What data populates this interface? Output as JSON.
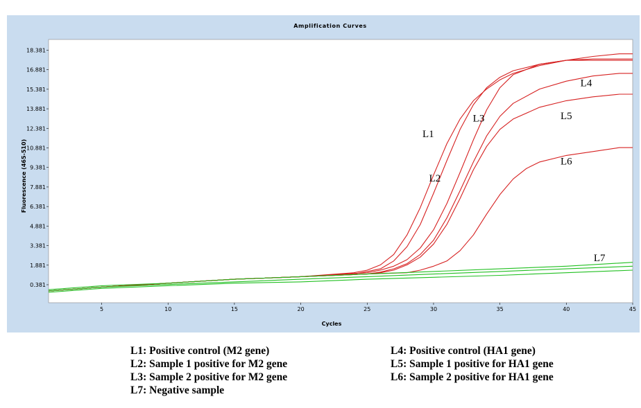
{
  "chart_data": {
    "type": "line",
    "title": "Amplification Curves",
    "xlabel": "Cycles",
    "ylabel": "Fluorescence (465-510)",
    "xlim": [
      1,
      45
    ],
    "ylim": [
      -1.0,
      19.2
    ],
    "x_ticks": [
      "5",
      "10",
      "15",
      "20",
      "25",
      "30",
      "35",
      "40",
      "45"
    ],
    "y_ticks": [
      "0.381",
      "1.881",
      "3.381",
      "4.881",
      "6.381",
      "7.881",
      "9.381",
      "10.881",
      "12.381",
      "13.881",
      "15.381",
      "16.881",
      "18.381"
    ],
    "grid": false,
    "series_colors": {
      "positive": "#d62020",
      "negative": "#1fbf1f"
    },
    "series": [
      {
        "name": "L1",
        "color": "#d62020",
        "x": [
          1,
          5,
          10,
          15,
          20,
          24,
          25,
          26,
          27,
          28,
          29,
          30,
          31,
          32,
          33,
          34,
          35,
          36,
          38,
          40,
          42,
          44,
          45
        ],
        "y": [
          -0.1,
          0.2,
          0.5,
          0.8,
          1.0,
          1.3,
          1.5,
          1.9,
          2.7,
          4.2,
          6.3,
          8.8,
          11.2,
          13.1,
          14.5,
          15.4,
          16.1,
          16.6,
          17.2,
          17.6,
          17.9,
          18.1,
          18.1
        ]
      },
      {
        "name": "L2",
        "color": "#d62020",
        "x": [
          1,
          5,
          10,
          15,
          20,
          24,
          25,
          26,
          27,
          28,
          29,
          30,
          31,
          32,
          33,
          34,
          35,
          36,
          38,
          40,
          42,
          44,
          45
        ],
        "y": [
          -0.1,
          0.2,
          0.5,
          0.8,
          1.0,
          1.2,
          1.4,
          1.6,
          2.2,
          3.3,
          5.0,
          7.4,
          9.9,
          12.3,
          14.2,
          15.5,
          16.3,
          16.8,
          17.3,
          17.6,
          17.7,
          17.7,
          17.7
        ]
      },
      {
        "name": "L3",
        "color": "#d62020",
        "x": [
          1,
          5,
          10,
          15,
          20,
          25,
          26,
          27,
          28,
          29,
          30,
          31,
          32,
          33,
          34,
          35,
          36,
          38,
          40,
          42,
          44,
          45
        ],
        "y": [
          -0.1,
          0.2,
          0.5,
          0.8,
          1.0,
          1.3,
          1.5,
          1.8,
          2.3,
          3.2,
          4.6,
          6.6,
          9.0,
          11.5,
          13.8,
          15.5,
          16.5,
          17.3,
          17.6,
          17.6,
          17.6,
          17.6
        ]
      },
      {
        "name": "L4",
        "color": "#d62020",
        "x": [
          1,
          5,
          10,
          15,
          20,
          25,
          26,
          27,
          28,
          29,
          30,
          31,
          32,
          33,
          34,
          35,
          36,
          38,
          40,
          42,
          44,
          45
        ],
        "y": [
          -0.1,
          0.2,
          0.5,
          0.8,
          1.0,
          1.2,
          1.35,
          1.6,
          2.0,
          2.7,
          3.8,
          5.5,
          7.6,
          9.8,
          11.8,
          13.3,
          14.3,
          15.4,
          16.0,
          16.4,
          16.6,
          16.6
        ]
      },
      {
        "name": "L5",
        "color": "#d62020",
        "x": [
          1,
          5,
          10,
          15,
          20,
          25,
          26,
          27,
          28,
          29,
          30,
          31,
          32,
          33,
          34,
          35,
          36,
          38,
          40,
          42,
          44,
          45
        ],
        "y": [
          -0.1,
          0.2,
          0.5,
          0.8,
          1.0,
          1.2,
          1.3,
          1.5,
          1.9,
          2.5,
          3.5,
          5.0,
          7.0,
          9.2,
          11.0,
          12.3,
          13.1,
          14.0,
          14.5,
          14.8,
          15.0,
          15.0
        ]
      },
      {
        "name": "L6",
        "color": "#d62020",
        "x": [
          1,
          5,
          10,
          15,
          20,
          25,
          28,
          29,
          30,
          31,
          32,
          33,
          34,
          35,
          36,
          37,
          38,
          40,
          42,
          44,
          45
        ],
        "y": [
          -0.1,
          0.2,
          0.5,
          0.8,
          1.0,
          1.2,
          1.3,
          1.5,
          1.8,
          2.2,
          3.0,
          4.2,
          5.8,
          7.3,
          8.5,
          9.3,
          9.8,
          10.3,
          10.6,
          10.9,
          10.9
        ]
      },
      {
        "name": "L7",
        "color": "#1fbf1f",
        "x": [
          1,
          5,
          10,
          15,
          20,
          25,
          30,
          35,
          40,
          45
        ],
        "y": [
          0.0,
          0.3,
          0.5,
          0.8,
          1.0,
          1.2,
          1.4,
          1.6,
          1.8,
          2.1
        ]
      },
      {
        "name": "",
        "color": "#1fbf1f",
        "x": [
          1,
          5,
          10,
          15,
          20,
          25,
          30,
          35,
          40,
          45
        ],
        "y": [
          -0.1,
          0.2,
          0.4,
          0.6,
          0.8,
          1.0,
          1.2,
          1.4,
          1.6,
          1.8
        ]
      },
      {
        "name": "",
        "color": "#1fbf1f",
        "x": [
          1,
          5,
          10,
          15,
          20,
          25,
          30,
          35,
          40,
          45
        ],
        "y": [
          -0.2,
          0.1,
          0.3,
          0.5,
          0.6,
          0.8,
          0.95,
          1.1,
          1.3,
          1.5
        ]
      }
    ],
    "legend": [
      "L1: Positive control (M2 gene)",
      "L2: Sample 1 positive for M2 gene",
      "L3: Sample 2 positive for M2 gene",
      "L7: Negative sample",
      "L4: Positive control (HA1 gene)",
      "L5: Sample 1 positive for HA1 gene",
      "L6: Sample 2 positive for HA1 gene"
    ]
  },
  "style": {
    "panel_bg": "#c9dcef",
    "plot_bg": "#ffffff"
  }
}
